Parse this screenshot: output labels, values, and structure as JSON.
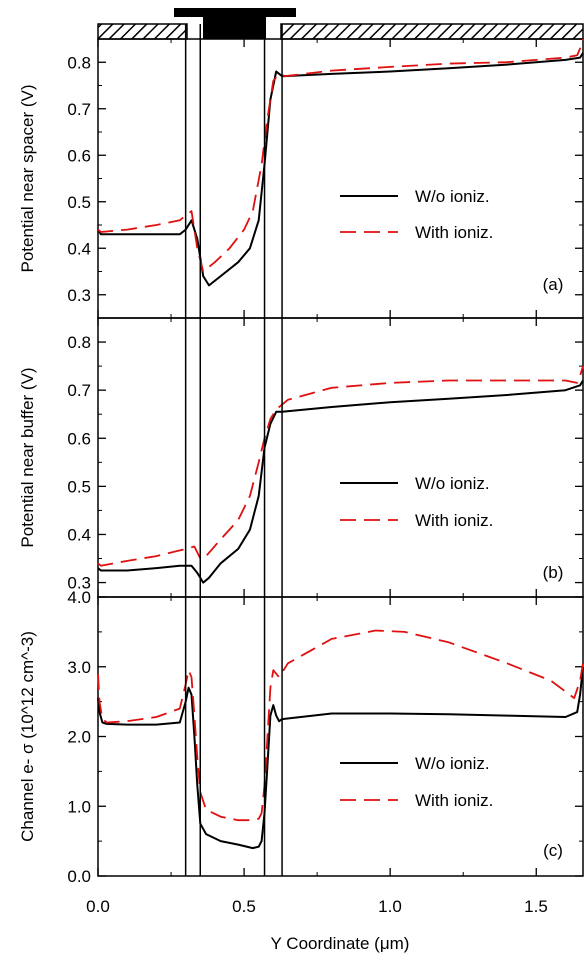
{
  "colors": {
    "without": "#000000",
    "with": "#e01010"
  },
  "xlabel": "Y Coordinate (μm)",
  "xaxis": {
    "min": 0,
    "max": 1.66,
    "ticks": [
      0,
      0.5,
      1.0,
      1.5
    ],
    "tick_labels": [
      "0.0",
      "0.5",
      "1.0",
      "1.5"
    ]
  },
  "regions": [
    0.3,
    0.35,
    0.57,
    0.63
  ],
  "chart_data": [
    {
      "type": "line",
      "tag": "(a)",
      "ylabel": "Potential near spacer (V)",
      "ylim": [
        0.25,
        0.85
      ],
      "yticks": [
        0.3,
        0.4,
        0.5,
        0.6,
        0.7,
        0.8
      ],
      "ytick_labels": [
        "0.3",
        "0.4",
        "0.5",
        "0.6",
        "0.7",
        "0.8"
      ],
      "legend": [
        "W/o ioniz.",
        "With ioniz."
      ],
      "series": [
        {
          "name": "W/o ioniz.",
          "style": "solid",
          "color": "#000000",
          "x": [
            0,
            0.01,
            0.1,
            0.2,
            0.28,
            0.3,
            0.32,
            0.34,
            0.36,
            0.38,
            0.42,
            0.48,
            0.52,
            0.55,
            0.57,
            0.59,
            0.61,
            0.63,
            0.8,
            1.0,
            1.2,
            1.4,
            1.6,
            1.65,
            1.66
          ],
          "y": [
            0.44,
            0.43,
            0.43,
            0.43,
            0.43,
            0.44,
            0.46,
            0.42,
            0.34,
            0.32,
            0.34,
            0.37,
            0.4,
            0.46,
            0.58,
            0.72,
            0.78,
            0.77,
            0.775,
            0.78,
            0.787,
            0.795,
            0.805,
            0.81,
            0.82
          ]
        },
        {
          "name": "With ioniz.",
          "style": "dashed",
          "color": "#e01010",
          "x": [
            0,
            0.01,
            0.1,
            0.2,
            0.28,
            0.3,
            0.32,
            0.34,
            0.36,
            0.4,
            0.45,
            0.5,
            0.53,
            0.56,
            0.58,
            0.6,
            0.62,
            0.64,
            0.8,
            1.0,
            1.2,
            1.4,
            1.6,
            1.64,
            1.65,
            1.66
          ],
          "y": [
            0.44,
            0.435,
            0.44,
            0.45,
            0.46,
            0.47,
            0.48,
            0.4,
            0.35,
            0.37,
            0.4,
            0.44,
            0.48,
            0.58,
            0.68,
            0.76,
            0.775,
            0.77,
            0.782,
            0.79,
            0.797,
            0.8,
            0.81,
            0.815,
            0.83,
            0.85
          ]
        }
      ]
    },
    {
      "type": "line",
      "tag": "(b)",
      "ylabel": "Potential near buffer (V)",
      "ylim": [
        0.27,
        0.85
      ],
      "yticks": [
        0.3,
        0.4,
        0.5,
        0.6,
        0.7,
        0.8
      ],
      "ytick_labels": [
        "0.3",
        "0.4",
        "0.5",
        "0.6",
        "0.7",
        "0.8"
      ],
      "legend": [
        "W/o ioniz.",
        "With ioniz."
      ],
      "series": [
        {
          "name": "W/o ioniz.",
          "style": "solid",
          "color": "#000000",
          "x": [
            0,
            0.01,
            0.1,
            0.2,
            0.28,
            0.32,
            0.34,
            0.36,
            0.38,
            0.42,
            0.48,
            0.52,
            0.55,
            0.57,
            0.59,
            0.61,
            0.63,
            0.8,
            1.0,
            1.2,
            1.4,
            1.6,
            1.65,
            1.66
          ],
          "y": [
            0.33,
            0.325,
            0.325,
            0.33,
            0.335,
            0.335,
            0.32,
            0.3,
            0.31,
            0.34,
            0.37,
            0.41,
            0.48,
            0.58,
            0.63,
            0.655,
            0.655,
            0.665,
            0.675,
            0.682,
            0.69,
            0.7,
            0.71,
            0.72
          ]
        },
        {
          "name": "With ioniz.",
          "style": "dashed",
          "color": "#e01010",
          "x": [
            0,
            0.01,
            0.1,
            0.2,
            0.3,
            0.33,
            0.35,
            0.37,
            0.42,
            0.48,
            0.52,
            0.55,
            0.57,
            0.59,
            0.61,
            0.65,
            0.8,
            1.0,
            1.2,
            1.4,
            1.6,
            1.64,
            1.65,
            1.66
          ],
          "y": [
            0.34,
            0.335,
            0.345,
            0.355,
            0.37,
            0.375,
            0.35,
            0.355,
            0.39,
            0.43,
            0.48,
            0.55,
            0.6,
            0.64,
            0.66,
            0.68,
            0.705,
            0.715,
            0.72,
            0.72,
            0.72,
            0.715,
            0.73,
            0.75
          ]
        }
      ]
    },
    {
      "type": "line",
      "tag": "(c)",
      "ylabel": "Channel e- σ (10^12 cm^-3)",
      "ylim": [
        0,
        4.0
      ],
      "yticks": [
        0,
        1.0,
        2.0,
        3.0,
        4.0
      ],
      "ytick_labels": [
        "0.0",
        "1.0",
        "2.0",
        "3.0",
        "4.0"
      ],
      "legend": [
        "W/o ioniz.",
        "With ioniz."
      ],
      "series": [
        {
          "name": "W/o ioniz.",
          "style": "solid",
          "color": "#000000",
          "x": [
            0,
            0.005,
            0.015,
            0.03,
            0.1,
            0.2,
            0.28,
            0.3,
            0.31,
            0.32,
            0.33,
            0.34,
            0.35,
            0.37,
            0.42,
            0.48,
            0.53,
            0.55,
            0.56,
            0.57,
            0.58,
            0.59,
            0.6,
            0.61,
            0.62,
            0.63,
            0.8,
            1.0,
            1.2,
            1.4,
            1.6,
            1.64,
            1.65,
            1.66
          ],
          "y": [
            2.55,
            2.35,
            2.2,
            2.18,
            2.17,
            2.17,
            2.2,
            2.5,
            2.7,
            2.6,
            2.0,
            1.3,
            0.75,
            0.6,
            0.5,
            0.45,
            0.4,
            0.42,
            0.5,
            0.9,
            1.6,
            2.3,
            2.45,
            2.3,
            2.22,
            2.25,
            2.33,
            2.33,
            2.32,
            2.3,
            2.28,
            2.35,
            2.6,
            3.0
          ]
        },
        {
          "name": "With ioniz.",
          "style": "dashed",
          "color": "#e01010",
          "x": [
            0,
            0.005,
            0.015,
            0.03,
            0.1,
            0.2,
            0.28,
            0.3,
            0.31,
            0.32,
            0.33,
            0.34,
            0.35,
            0.37,
            0.42,
            0.48,
            0.53,
            0.55,
            0.56,
            0.57,
            0.58,
            0.59,
            0.6,
            0.61,
            0.62,
            0.65,
            0.8,
            0.95,
            1.05,
            1.2,
            1.4,
            1.55,
            1.63,
            1.65,
            1.66
          ],
          "y": [
            2.9,
            2.5,
            2.25,
            2.2,
            2.22,
            2.28,
            2.4,
            2.75,
            2.95,
            2.85,
            2.3,
            1.7,
            1.2,
            0.95,
            0.85,
            0.8,
            0.8,
            0.82,
            0.9,
            1.3,
            2.0,
            2.7,
            2.95,
            2.9,
            2.85,
            3.05,
            3.4,
            3.52,
            3.5,
            3.35,
            3.05,
            2.8,
            2.55,
            2.8,
            3.05
          ]
        }
      ]
    }
  ]
}
